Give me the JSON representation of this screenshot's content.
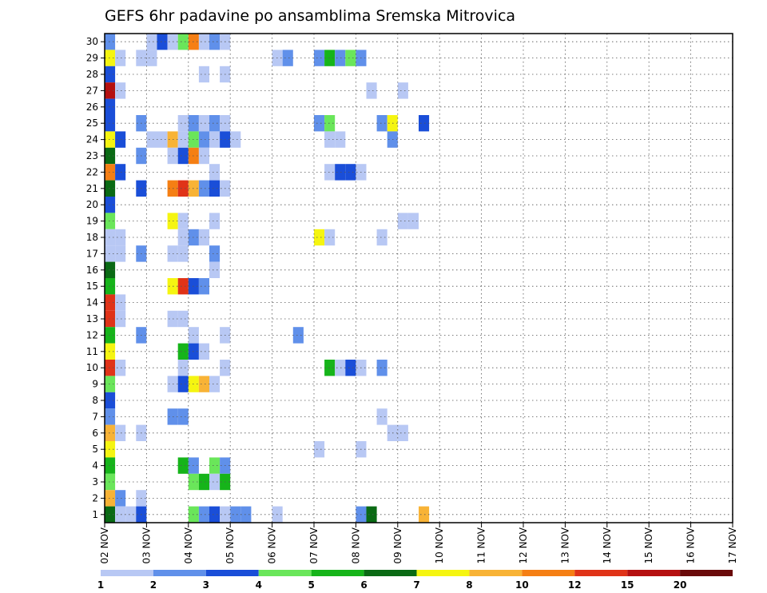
{
  "chart_data": {
    "type": "heatmap",
    "title": "GEFS 6hr padavine po ansamblima Sremska Mitrovica",
    "xlabel": "",
    "ylabel": "",
    "x_tick_labels": [
      "02 NOV",
      "03 NOV",
      "04 NOV",
      "05 NOV",
      "06 NOV",
      "07 NOV",
      "08 NOV",
      "09 NOV",
      "10 NOV",
      "11 NOV",
      "12 NOV",
      "13 NOV",
      "14 NOV",
      "15 NOV",
      "16 NOV",
      "17 NOV"
    ],
    "y_tick_labels": [
      "1",
      "2",
      "3",
      "4",
      "5",
      "6",
      "7",
      "8",
      "9",
      "10",
      "11",
      "12",
      "13",
      "14",
      "15",
      "16",
      "17",
      "18",
      "19",
      "20",
      "21",
      "22",
      "23",
      "24",
      "25",
      "26",
      "27",
      "28",
      "29",
      "30"
    ],
    "xlim": [
      0,
      60
    ],
    "ylim": [
      0.5,
      30.5
    ],
    "x_unit": "6-hour steps from 02 NOV",
    "grid": true,
    "colorbar": {
      "labels": [
        "1",
        "2",
        "3",
        "4",
        "5",
        "6",
        "7",
        "8",
        "10",
        "12",
        "15",
        "20"
      ],
      "colors": [
        "#b8c8f4",
        "#6090ea",
        "#1a4ed8",
        "#6ae65a",
        "#16b41a",
        "#0a6a14",
        "#f5f511",
        "#f8b336",
        "#f57f14",
        "#e03318",
        "#b51010",
        "#6a0a0a"
      ]
    },
    "cells": [
      [
        0,
        30,
        2
      ],
      [
        4,
        30,
        1
      ],
      [
        5,
        30,
        3
      ],
      [
        6,
        30,
        1
      ],
      [
        7,
        30,
        4
      ],
      [
        8,
        30,
        9
      ],
      [
        9,
        30,
        1
      ],
      [
        10,
        30,
        2
      ],
      [
        11,
        30,
        1
      ],
      [
        0,
        29,
        7
      ],
      [
        1,
        29,
        1
      ],
      [
        3,
        29,
        1
      ],
      [
        4,
        29,
        1
      ],
      [
        16,
        29,
        1
      ],
      [
        17,
        29,
        2
      ],
      [
        20,
        29,
        2
      ],
      [
        21,
        29,
        5
      ],
      [
        22,
        29,
        2
      ],
      [
        23,
        29,
        4
      ],
      [
        24,
        29,
        2
      ],
      [
        0,
        28,
        3
      ],
      [
        9,
        28,
        1
      ],
      [
        11,
        28,
        1
      ],
      [
        0,
        27,
        11
      ],
      [
        1,
        27,
        1
      ],
      [
        25,
        27,
        1
      ],
      [
        28,
        27,
        1
      ],
      [
        0,
        26,
        3
      ],
      [
        0,
        25,
        3
      ],
      [
        3,
        25,
        2
      ],
      [
        7,
        25,
        1
      ],
      [
        8,
        25,
        2
      ],
      [
        9,
        25,
        1
      ],
      [
        10,
        25,
        2
      ],
      [
        11,
        25,
        1
      ],
      [
        20,
        25,
        2
      ],
      [
        21,
        25,
        4
      ],
      [
        26,
        25,
        2
      ],
      [
        27,
        25,
        7
      ],
      [
        30,
        25,
        3
      ],
      [
        0,
        24,
        7
      ],
      [
        1,
        24,
        3
      ],
      [
        4,
        24,
        1
      ],
      [
        5,
        24,
        1
      ],
      [
        6,
        24,
        8
      ],
      [
        7,
        24,
        1
      ],
      [
        8,
        24,
        4
      ],
      [
        9,
        24,
        2
      ],
      [
        10,
        24,
        1
      ],
      [
        11,
        24,
        3
      ],
      [
        12,
        24,
        1
      ],
      [
        21,
        24,
        1
      ],
      [
        22,
        24,
        1
      ],
      [
        27,
        24,
        2
      ],
      [
        0,
        23,
        6
      ],
      [
        3,
        23,
        2
      ],
      [
        6,
        23,
        1
      ],
      [
        7,
        23,
        3
      ],
      [
        8,
        23,
        9
      ],
      [
        9,
        23,
        1
      ],
      [
        0,
        22,
        9
      ],
      [
        1,
        22,
        3
      ],
      [
        10,
        22,
        1
      ],
      [
        21,
        22,
        1
      ],
      [
        22,
        22,
        3
      ],
      [
        23,
        22,
        3
      ],
      [
        24,
        22,
        1
      ],
      [
        0,
        21,
        6
      ],
      [
        3,
        21,
        3
      ],
      [
        6,
        21,
        9
      ],
      [
        7,
        21,
        10
      ],
      [
        8,
        21,
        8
      ],
      [
        9,
        21,
        2
      ],
      [
        10,
        21,
        3
      ],
      [
        11,
        21,
        1
      ],
      [
        0,
        20,
        3
      ],
      [
        0,
        19,
        4
      ],
      [
        6,
        19,
        7
      ],
      [
        7,
        19,
        1
      ],
      [
        10,
        19,
        1
      ],
      [
        28,
        19,
        1
      ],
      [
        29,
        19,
        1
      ],
      [
        0,
        18,
        1
      ],
      [
        1,
        18,
        1
      ],
      [
        7,
        18,
        1
      ],
      [
        8,
        18,
        2
      ],
      [
        9,
        18,
        1
      ],
      [
        20,
        18,
        7
      ],
      [
        21,
        18,
        1
      ],
      [
        26,
        18,
        1
      ],
      [
        0,
        17,
        1
      ],
      [
        1,
        17,
        1
      ],
      [
        3,
        17,
        2
      ],
      [
        6,
        17,
        1
      ],
      [
        7,
        17,
        1
      ],
      [
        10,
        17,
        2
      ],
      [
        0,
        16,
        6
      ],
      [
        10,
        16,
        1
      ],
      [
        0,
        15,
        5
      ],
      [
        6,
        15,
        7
      ],
      [
        7,
        15,
        10
      ],
      [
        8,
        15,
        3
      ],
      [
        9,
        15,
        2
      ],
      [
        0,
        14,
        10
      ],
      [
        1,
        14,
        1
      ],
      [
        0,
        13,
        10
      ],
      [
        1,
        13,
        1
      ],
      [
        6,
        13,
        1
      ],
      [
        7,
        13,
        1
      ],
      [
        0,
        12,
        5
      ],
      [
        3,
        12,
        2
      ],
      [
        8,
        12,
        1
      ],
      [
        11,
        12,
        1
      ],
      [
        18,
        12,
        2
      ],
      [
        0,
        11,
        7
      ],
      [
        7,
        11,
        5
      ],
      [
        8,
        11,
        3
      ],
      [
        9,
        11,
        1
      ],
      [
        0,
        10,
        10
      ],
      [
        1,
        10,
        1
      ],
      [
        7,
        10,
        1
      ],
      [
        11,
        10,
        1
      ],
      [
        21,
        10,
        5
      ],
      [
        22,
        10,
        1
      ],
      [
        23,
        10,
        3
      ],
      [
        24,
        10,
        1
      ],
      [
        26,
        10,
        2
      ],
      [
        0,
        9,
        4
      ],
      [
        6,
        9,
        1
      ],
      [
        7,
        9,
        3
      ],
      [
        8,
        9,
        7
      ],
      [
        9,
        9,
        8
      ],
      [
        10,
        9,
        1
      ],
      [
        0,
        8,
        3
      ],
      [
        0,
        7,
        2
      ],
      [
        6,
        7,
        2
      ],
      [
        7,
        7,
        2
      ],
      [
        26,
        7,
        1
      ],
      [
        0,
        6,
        8
      ],
      [
        1,
        6,
        1
      ],
      [
        3,
        6,
        1
      ],
      [
        27,
        6,
        1
      ],
      [
        28,
        6,
        1
      ],
      [
        0,
        5,
        7
      ],
      [
        20,
        5,
        1
      ],
      [
        24,
        5,
        1
      ],
      [
        0,
        4,
        5
      ],
      [
        7,
        4,
        5
      ],
      [
        8,
        4,
        2
      ],
      [
        10,
        4,
        4
      ],
      [
        11,
        4,
        2
      ],
      [
        0,
        3,
        4
      ],
      [
        8,
        3,
        4
      ],
      [
        9,
        3,
        5
      ],
      [
        10,
        3,
        1
      ],
      [
        11,
        3,
        5
      ],
      [
        0,
        2,
        8
      ],
      [
        1,
        2,
        2
      ],
      [
        3,
        2,
        1
      ],
      [
        0,
        1,
        6
      ],
      [
        1,
        1,
        1
      ],
      [
        2,
        1,
        1
      ],
      [
        3,
        1,
        3
      ],
      [
        8,
        1,
        4
      ],
      [
        9,
        1,
        2
      ],
      [
        10,
        1,
        3
      ],
      [
        11,
        1,
        1
      ],
      [
        12,
        1,
        2
      ],
      [
        13,
        1,
        2
      ],
      [
        16,
        1,
        1
      ],
      [
        24,
        1,
        2
      ],
      [
        25,
        1,
        6
      ],
      [
        30,
        1,
        8
      ],
      [
        1,
        0,
        2
      ],
      [
        8,
        0,
        4
      ],
      [
        20,
        0,
        3
      ],
      [
        26,
        0,
        1
      ],
      [
        27,
        0,
        1
      ]
    ]
  }
}
